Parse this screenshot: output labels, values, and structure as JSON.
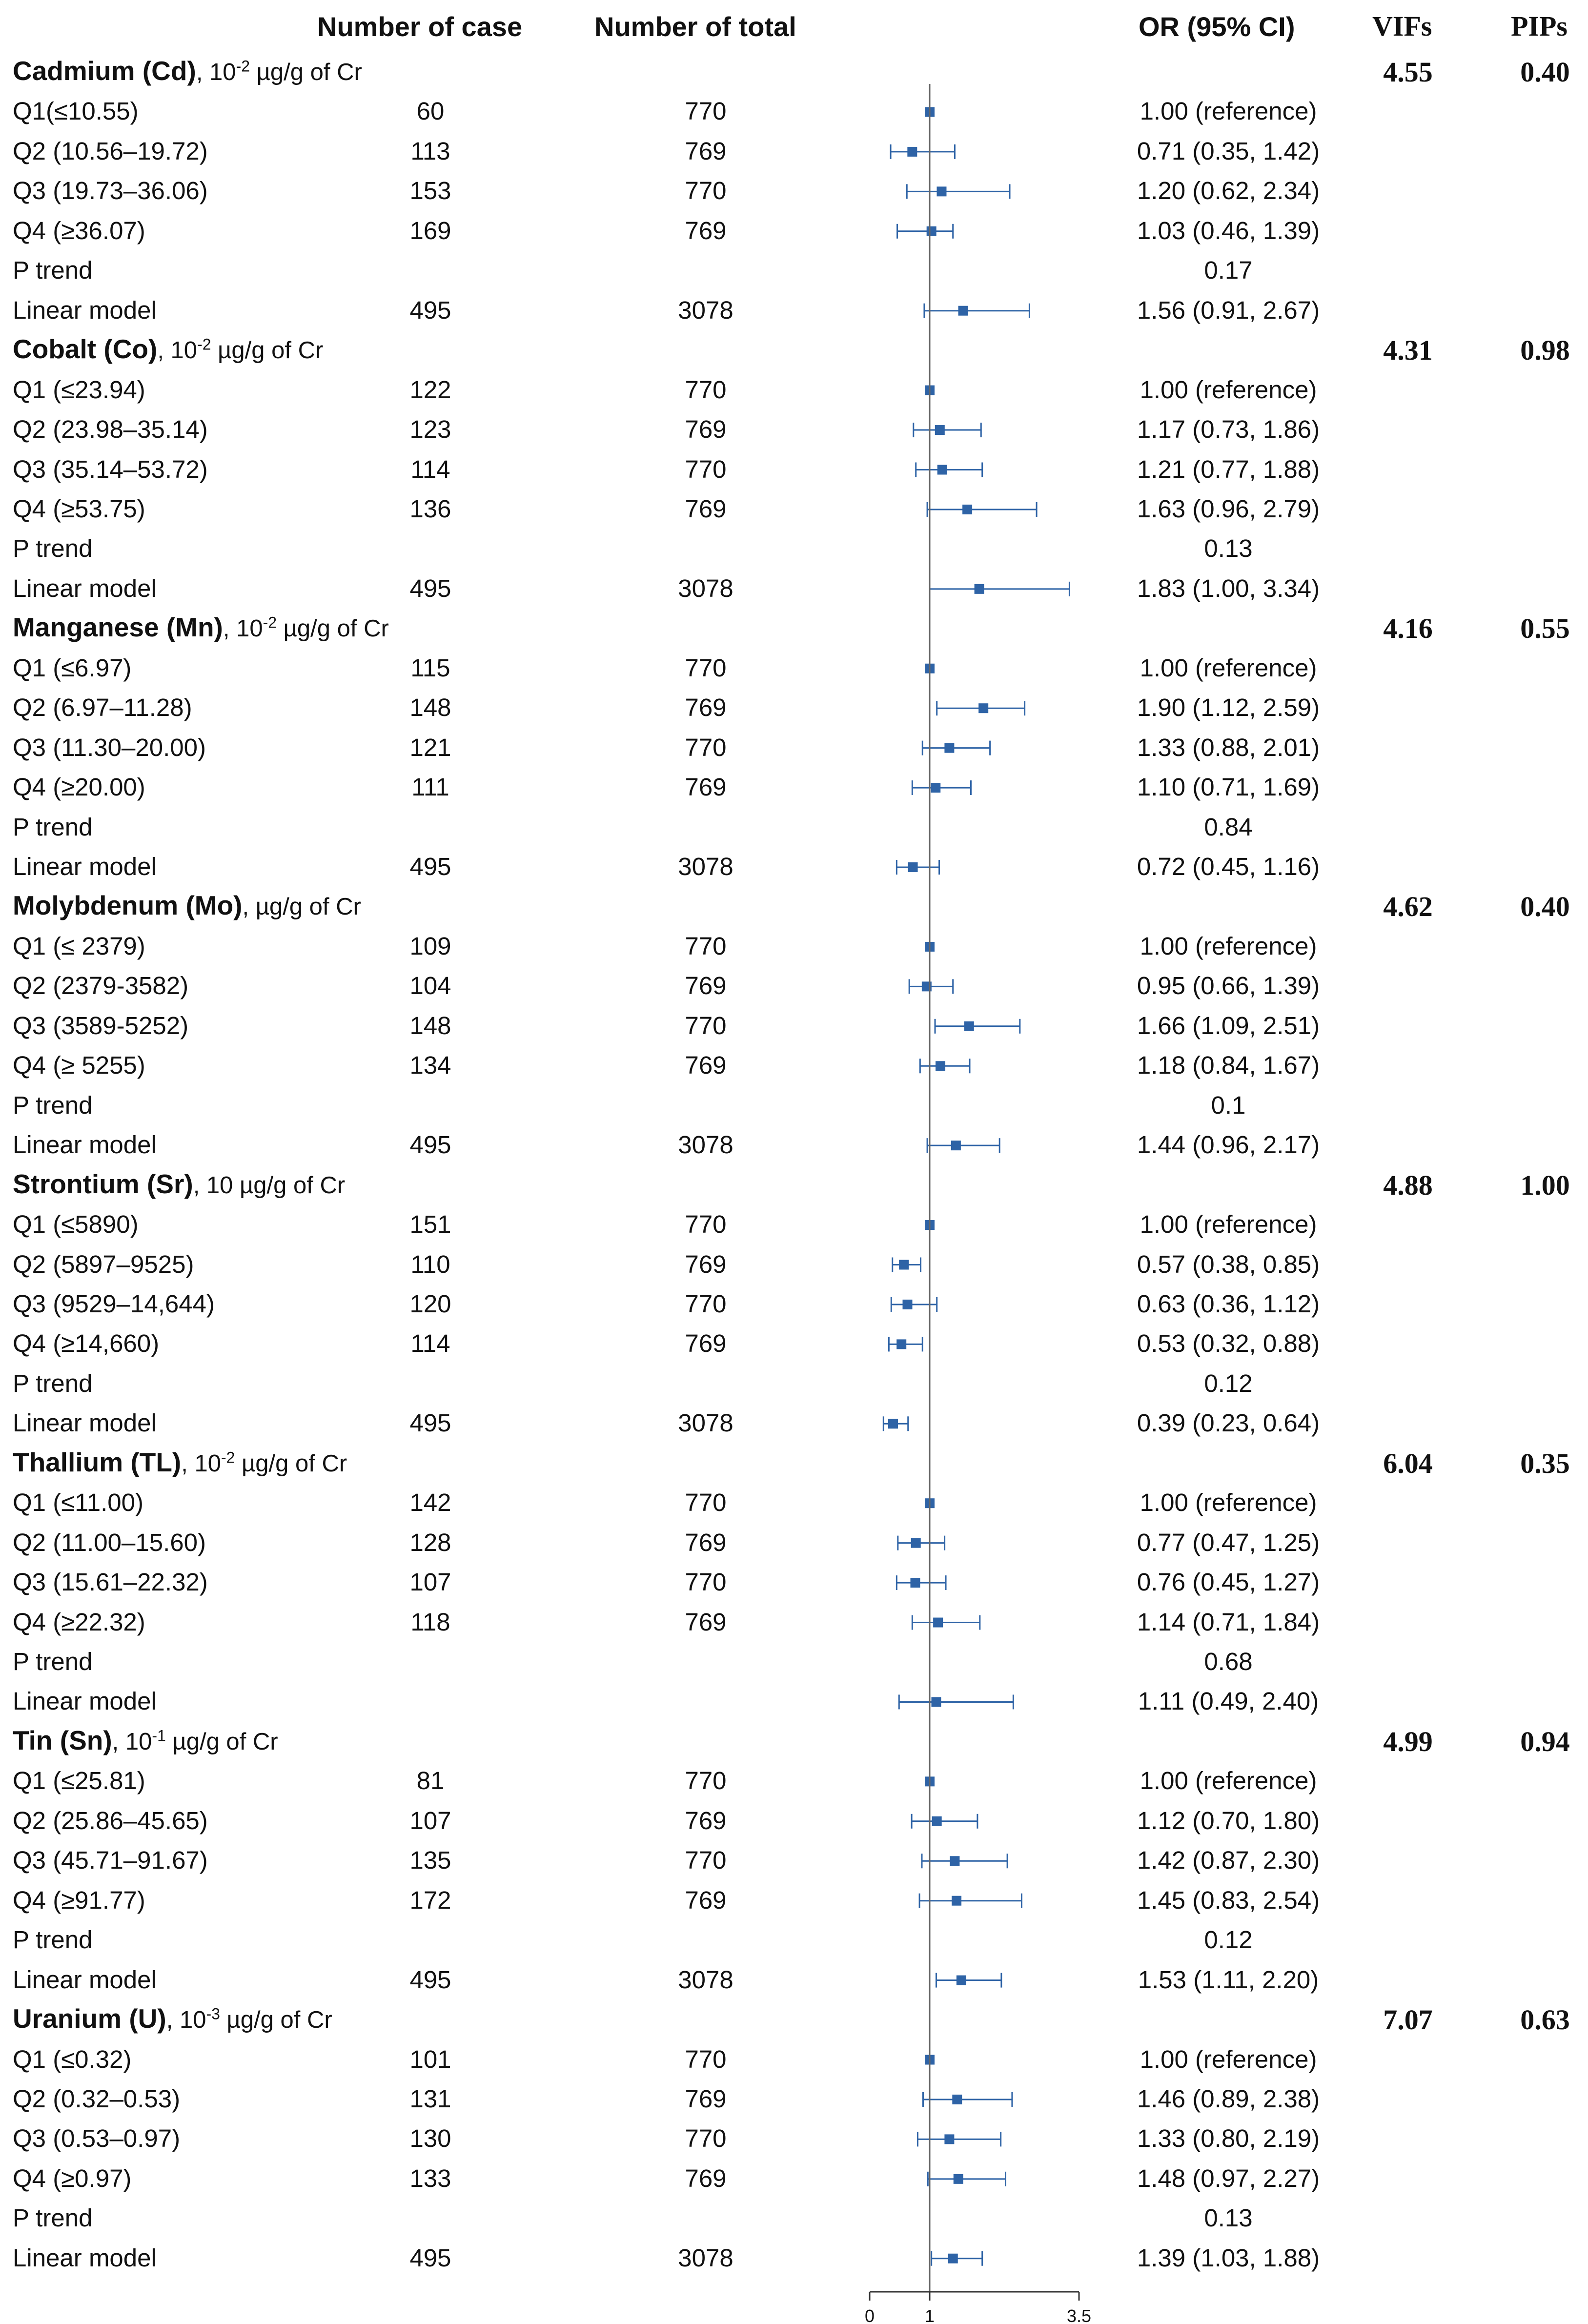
{
  "headers": {
    "cases": "Number of case",
    "total": "Number of total",
    "or": "OR (95% CI)",
    "vifs": "VIFs",
    "pips": "PIPs"
  },
  "colors": {
    "marker": "#2e63a6",
    "line": "#2e63a6",
    "axis": "#666666"
  },
  "chart_data": {
    "type": "forest",
    "x_axis": {
      "ticks": [
        0,
        1,
        3.5
      ],
      "tick_labels": [
        "0",
        "1",
        "3.5"
      ],
      "range": [
        0,
        3.5
      ],
      "reference": 1
    },
    "groups": [
      {
        "name": "Cadmium (Cd)",
        "unit_pre": ", 10",
        "unit_exp": "-2",
        "unit_post": " µg/g of Cr",
        "vif": "4.55",
        "pip": "0.40",
        "rows": [
          {
            "label": "Q1(≤10.55)",
            "cases": "60",
            "total": "770",
            "or_text": "1.00 (reference)",
            "or": 1.0,
            "lo": 1.0,
            "hi": 1.0
          },
          {
            "label": "Q2 (10.56–19.72)",
            "cases": "113",
            "total": "769",
            "or_text": "0.71 (0.35, 1.42)",
            "or": 0.71,
            "lo": 0.35,
            "hi": 1.42
          },
          {
            "label": "Q3 (19.73–36.06)",
            "cases": "153",
            "total": "770",
            "or_text": "1.20 (0.62, 2.34)",
            "or": 1.2,
            "lo": 0.62,
            "hi": 2.34
          },
          {
            "label": "Q4 (≥36.07)",
            "cases": "169",
            "total": "769",
            "or_text": "1.03 (0.46, 1.39)",
            "or": 1.03,
            "lo": 0.46,
            "hi": 1.39
          },
          {
            "label": "P trend",
            "cases": "",
            "total": "",
            "or_text": "0.17",
            "ptrend": true
          },
          {
            "label": "Linear model",
            "cases": "495",
            "total": "3078",
            "or_text": "1.56 (0.91, 2.67)",
            "or": 1.56,
            "lo": 0.91,
            "hi": 2.67
          }
        ]
      },
      {
        "name": "Cobalt (Co)",
        "unit_pre": ", 10",
        "unit_exp": "-2",
        "unit_post": " µg/g of Cr",
        "vif": "4.31",
        "pip": "0.98",
        "rows": [
          {
            "label": "Q1 (≤23.94)",
            "cases": "122",
            "total": "770",
            "or_text": "1.00 (reference)",
            "or": 1.0,
            "lo": 1.0,
            "hi": 1.0
          },
          {
            "label": "Q2 (23.98–35.14)",
            "cases": "123",
            "total": "769",
            "or_text": "1.17 (0.73, 1.86)",
            "or": 1.17,
            "lo": 0.73,
            "hi": 1.86
          },
          {
            "label": "Q3 (35.14–53.72)",
            "cases": "114",
            "total": "770",
            "or_text": "1.21 (0.77, 1.88)",
            "or": 1.21,
            "lo": 0.77,
            "hi": 1.88
          },
          {
            "label": "Q4 (≥53.75)",
            "cases": "136",
            "total": "769",
            "or_text": "1.63 (0.96, 2.79)",
            "or": 1.63,
            "lo": 0.96,
            "hi": 2.79
          },
          {
            "label": "P trend",
            "cases": "",
            "total": "",
            "or_text": "0.13",
            "ptrend": true
          },
          {
            "label": "Linear model",
            "cases": "495",
            "total": "3078",
            "or_text": "1.83 (1.00, 3.34)",
            "or": 1.83,
            "lo": 1.0,
            "hi": 3.34
          }
        ]
      },
      {
        "name": "Manganese (Mn)",
        "unit_pre": ", 10",
        "unit_exp": "-2",
        "unit_post": " µg/g of Cr",
        "vif": "4.16",
        "pip": "0.55",
        "rows": [
          {
            "label": "Q1 (≤6.97)",
            "cases": "115",
            "total": "770",
            "or_text": "1.00 (reference)",
            "or": 1.0,
            "lo": 1.0,
            "hi": 1.0
          },
          {
            "label": "Q2 (6.97–11.28)",
            "cases": "148",
            "total": "769",
            "or_text": "1.90 (1.12, 2.59)",
            "or": 1.9,
            "lo": 1.12,
            "hi": 2.59
          },
          {
            "label": "Q3 (11.30–20.00)",
            "cases": "121",
            "total": "770",
            "or_text": "1.33 (0.88, 2.01)",
            "or": 1.33,
            "lo": 0.88,
            "hi": 2.01
          },
          {
            "label": "Q4 (≥20.00)",
            "cases": "111",
            "total": "769",
            "or_text": "1.10 (0.71, 1.69)",
            "or": 1.1,
            "lo": 0.71,
            "hi": 1.69
          },
          {
            "label": "P trend",
            "cases": "",
            "total": "",
            "or_text": "0.84",
            "ptrend": true
          },
          {
            "label": "Linear model",
            "cases": "495",
            "total": "3078",
            "or_text": "0.72 (0.45, 1.16)",
            "or": 0.72,
            "lo": 0.45,
            "hi": 1.16
          }
        ]
      },
      {
        "name": "Molybdenum (Mo)",
        "unit_pre": ",",
        "unit_exp": "",
        "unit_post": " µg/g of Cr",
        "vif": "4.62",
        "pip": "0.40",
        "rows": [
          {
            "label": "Q1 (≤ 2379)",
            "cases": "109",
            "total": "770",
            "or_text": "1.00 (reference)",
            "or": 1.0,
            "lo": 1.0,
            "hi": 1.0
          },
          {
            "label": "Q2 (2379-3582)",
            "cases": "104",
            "total": "769",
            "or_text": "0.95 (0.66, 1.39)",
            "or": 0.95,
            "lo": 0.66,
            "hi": 1.39
          },
          {
            "label": "Q3 (3589-5252)",
            "cases": "148",
            "total": "770",
            "or_text": "1.66 (1.09, 2.51)",
            "or": 1.66,
            "lo": 1.09,
            "hi": 2.51
          },
          {
            "label": "Q4 (≥ 5255)",
            "cases": "134",
            "total": "769",
            "or_text": "1.18 (0.84, 1.67)",
            "or": 1.18,
            "lo": 0.84,
            "hi": 1.67
          },
          {
            "label": "P trend",
            "cases": "",
            "total": "",
            "or_text": "0.1",
            "ptrend": true
          },
          {
            "label": "Linear model",
            "cases": "495",
            "total": "3078",
            "or_text": "1.44 (0.96, 2.17)",
            "or": 1.44,
            "lo": 0.96,
            "hi": 2.17
          }
        ]
      },
      {
        "name": "Strontium (Sr)",
        "unit_pre": ", 10",
        "unit_exp": "",
        "unit_post": " µg/g of Cr",
        "vif": "4.88",
        "pip": "1.00",
        "rows": [
          {
            "label": "Q1 (≤5890)",
            "cases": "151",
            "total": "770",
            "or_text": "1.00 (reference)",
            "or": 1.0,
            "lo": 1.0,
            "hi": 1.0
          },
          {
            "label": "Q2 (5897–9525)",
            "cases": "110",
            "total": "769",
            "or_text": "0.57 (0.38, 0.85)",
            "or": 0.57,
            "lo": 0.38,
            "hi": 0.85
          },
          {
            "label": "Q3 (9529–14,644)",
            "cases": "120",
            "total": "770",
            "or_text": "0.63 (0.36, 1.12)",
            "or": 0.63,
            "lo": 0.36,
            "hi": 1.12
          },
          {
            "label": "Q4 (≥14,660)",
            "cases": "114",
            "total": "769",
            "or_text": "0.53 (0.32, 0.88)",
            "or": 0.53,
            "lo": 0.32,
            "hi": 0.88
          },
          {
            "label": "P trend",
            "cases": "",
            "total": "",
            "or_text": "0.12",
            "ptrend": true
          },
          {
            "label": "Linear model",
            "cases": "495",
            "total": "3078",
            "or_text": "0.39 (0.23, 0.64)",
            "or": 0.39,
            "lo": 0.23,
            "hi": 0.64
          }
        ]
      },
      {
        "name": "Thallium (TL)",
        "unit_pre": ", 10",
        "unit_exp": "-2",
        "unit_post": " µg/g of Cr",
        "vif": "6.04",
        "pip": "0.35",
        "rows": [
          {
            "label": "Q1 (≤11.00)",
            "cases": "142",
            "total": "770",
            "or_text": "1.00 (reference)",
            "or": 1.0,
            "lo": 1.0,
            "hi": 1.0
          },
          {
            "label": "Q2 (11.00–15.60)",
            "cases": "128",
            "total": "769",
            "or_text": "0.77 (0.47, 1.25)",
            "or": 0.77,
            "lo": 0.47,
            "hi": 1.25
          },
          {
            "label": "Q3 (15.61–22.32)",
            "cases": "107",
            "total": "770",
            "or_text": "0.76 (0.45, 1.27)",
            "or": 0.76,
            "lo": 0.45,
            "hi": 1.27
          },
          {
            "label": "Q4 (≥22.32)",
            "cases": "118",
            "total": "769",
            "or_text": "1.14 (0.71, 1.84)",
            "or": 1.14,
            "lo": 0.71,
            "hi": 1.84
          },
          {
            "label": "P trend",
            "cases": "",
            "total": "",
            "or_text": "0.68",
            "ptrend": true
          },
          {
            "label": "Linear model",
            "cases": "",
            "total": "",
            "or_text": "1.11 (0.49, 2.40)",
            "or": 1.11,
            "lo": 0.49,
            "hi": 2.4
          }
        ]
      },
      {
        "name": "Tin (Sn)",
        "unit_pre": ", 10",
        "unit_exp": "-1",
        "unit_post": " µg/g of Cr",
        "vif": "4.99",
        "pip": "0.94",
        "rows": [
          {
            "label": "Q1 (≤25.81)",
            "cases": "81",
            "total": "770",
            "or_text": "1.00 (reference)",
            "or": 1.0,
            "lo": 1.0,
            "hi": 1.0
          },
          {
            "label": "Q2 (25.86–45.65)",
            "cases": "107",
            "total": "769",
            "or_text": "1.12 (0.70, 1.80)",
            "or": 1.12,
            "lo": 0.7,
            "hi": 1.8
          },
          {
            "label": "Q3 (45.71–91.67)",
            "cases": "135",
            "total": "770",
            "or_text": "1.42 (0.87, 2.30)",
            "or": 1.42,
            "lo": 0.87,
            "hi": 2.3
          },
          {
            "label": "Q4 (≥91.77)",
            "cases": "172",
            "total": "769",
            "or_text": "1.45 (0.83, 2.54)",
            "or": 1.45,
            "lo": 0.83,
            "hi": 2.54
          },
          {
            "label": "P trend",
            "cases": "",
            "total": "",
            "or_text": "0.12",
            "ptrend": true
          },
          {
            "label": "Linear model",
            "cases": "495",
            "total": "3078",
            "or_text": "1.53 (1.11, 2.20)",
            "or": 1.53,
            "lo": 1.11,
            "hi": 2.2
          }
        ]
      },
      {
        "name": "Uranium (U)",
        "unit_pre": ", 10",
        "unit_exp": "-3",
        "unit_post": " µg/g of Cr",
        "vif": "7.07",
        "pip": "0.63",
        "rows": [
          {
            "label": "Q1 (≤0.32)",
            "cases": "101",
            "total": "770",
            "or_text": "1.00 (reference)",
            "or": 1.0,
            "lo": 1.0,
            "hi": 1.0
          },
          {
            "label": "Q2 (0.32–0.53)",
            "cases": "131",
            "total": "769",
            "or_text": "1.46 (0.89, 2.38)",
            "or": 1.46,
            "lo": 0.89,
            "hi": 2.38
          },
          {
            "label": "Q3 (0.53–0.97)",
            "cases": "130",
            "total": "770",
            "or_text": "1.33 (0.80, 2.19)",
            "or": 1.33,
            "lo": 0.8,
            "hi": 2.19
          },
          {
            "label": "Q4 (≥0.97)",
            "cases": "133",
            "total": "769",
            "or_text": "1.48 (0.97, 2.27)",
            "or": 1.48,
            "lo": 0.97,
            "hi": 2.27
          },
          {
            "label": "P trend",
            "cases": "",
            "total": "",
            "or_text": "0.13",
            "ptrend": true
          },
          {
            "label": "Linear model",
            "cases": "495",
            "total": "3078",
            "or_text": "1.39 (1.03, 1.88)",
            "or": 1.39,
            "lo": 1.03,
            "hi": 1.88
          }
        ]
      }
    ]
  }
}
